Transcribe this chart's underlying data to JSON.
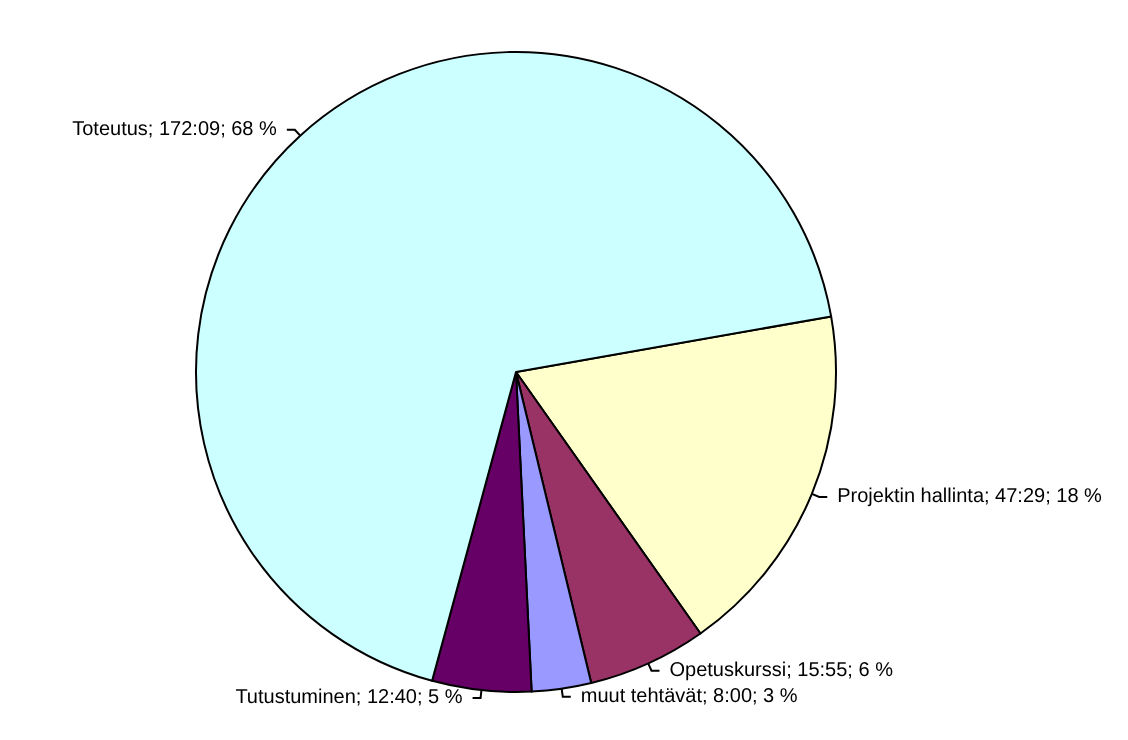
{
  "chart_data": {
    "type": "pie",
    "categories": [
      "Projektin hallinta; 47:29; 18 %",
      "Opetuskurssi; 15:55; 6 %",
      "muut tehtävät; 8:00; 3 %",
      "Tutustuminen; 12:40; 5 %",
      "Toteutus; 172:09; 68 %"
    ],
    "values": [
      18,
      6,
      3,
      5,
      68
    ],
    "colors": [
      "#ffffcc",
      "#993366",
      "#9999ff",
      "#660066",
      "#ccffff"
    ],
    "legend": false
  }
}
